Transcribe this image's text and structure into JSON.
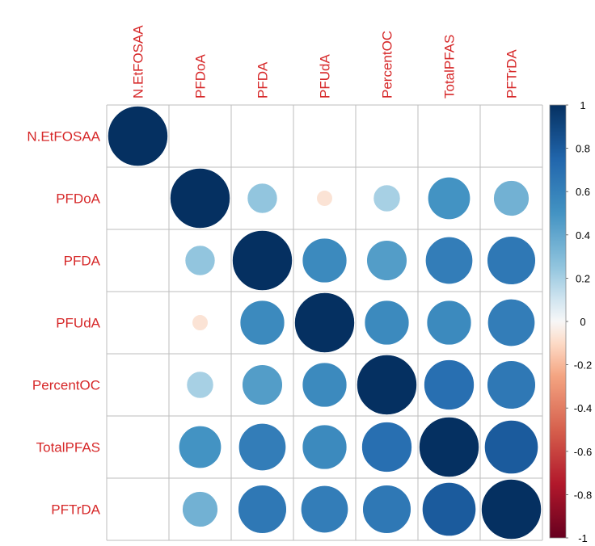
{
  "chart_data": {
    "type": "heatmap",
    "style": "corrplot-circle",
    "variables": [
      "N.EtFOSAA",
      "PFDoA",
      "PFDA",
      "PFUdA",
      "PercentOC",
      "TotalPFAS",
      "PFTrDA"
    ],
    "matrix": [
      [
        1,
        null,
        null,
        null,
        null,
        null,
        null
      ],
      [
        null,
        1,
        0.25,
        -0.07,
        0.2,
        0.5,
        0.35
      ],
      [
        null,
        0.25,
        1,
        0.55,
        0.45,
        0.62,
        0.65
      ],
      [
        null,
        -0.07,
        0.55,
        1,
        0.55,
        0.55,
        0.62
      ],
      [
        null,
        0.2,
        0.45,
        0.55,
        1,
        0.7,
        0.65
      ],
      [
        null,
        0.5,
        0.62,
        0.55,
        0.7,
        1,
        0.8
      ],
      [
        null,
        0.35,
        0.65,
        0.62,
        0.65,
        0.8,
        1
      ]
    ],
    "legend_ticks": [
      "1",
      "0.8",
      "0.6",
      "0.4",
      "0.2",
      "0",
      "-0.2",
      "-0.4",
      "-0.6",
      "-0.8",
      "-1"
    ],
    "color_scale": {
      "neg": "#67001F",
      "mid": "#F7F7F7",
      "pos": "#053061"
    },
    "label_color": "#D62728",
    "grid_color": "#BEBEBE",
    "zlim": [
      -1,
      1
    ],
    "legend_placement": "right",
    "grid": true
  }
}
